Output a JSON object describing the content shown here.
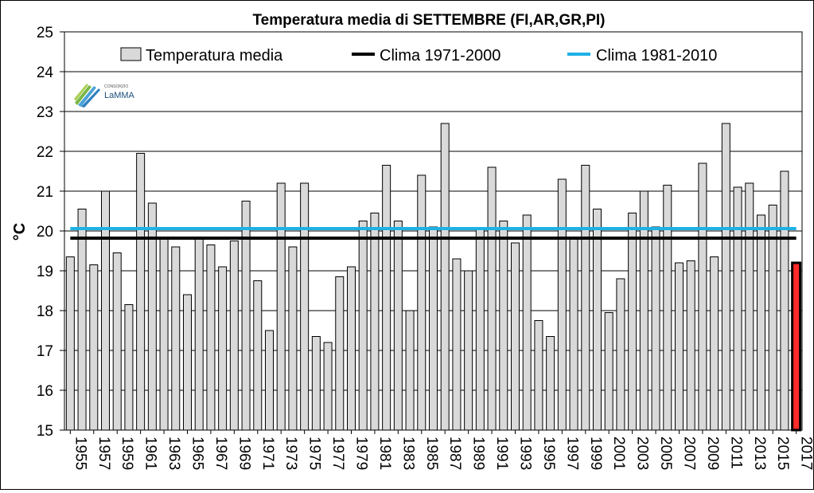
{
  "logo": {
    "top": "CONSORZIO",
    "name": "LaMMA"
  },
  "chart_data": {
    "type": "bar",
    "title": "Temperatura media di SETTEMBRE (FI,AR,GR,PI)",
    "xlabel": "",
    "ylabel": "°C",
    "ylim": [
      15,
      25
    ],
    "yticks": [
      15,
      16,
      17,
      18,
      19,
      20,
      21,
      22,
      23,
      24,
      25
    ],
    "grid": "horizontal",
    "legend_position": "top",
    "categories": [
      "1955",
      "1956",
      "1957",
      "1958",
      "1959",
      "1960",
      "1961",
      "1962",
      "1963",
      "1964",
      "1965",
      "1966",
      "1967",
      "1968",
      "1969",
      "1970",
      "1971",
      "1972",
      "1973",
      "1974",
      "1975",
      "1976",
      "1977",
      "1978",
      "1979",
      "1980",
      "1981",
      "1982",
      "1983",
      "1984",
      "1985",
      "1986",
      "1987",
      "1988",
      "1989",
      "1990",
      "1991",
      "1992",
      "1993",
      "1994",
      "1995",
      "1996",
      "1997",
      "1998",
      "1999",
      "2000",
      "2001",
      "2002",
      "2003",
      "2004",
      "2005",
      "2006",
      "2007",
      "2008",
      "2009",
      "2010",
      "2011",
      "2012",
      "2013",
      "2014",
      "2015",
      "2016",
      "2017"
    ],
    "tick_labels": [
      "1955",
      "1957",
      "1959",
      "1961",
      "1963",
      "1965",
      "1967",
      "1969",
      "1971",
      "1973",
      "1975",
      "1977",
      "1979",
      "1981",
      "1983",
      "1985",
      "1987",
      "1989",
      "1991",
      "1993",
      "1995",
      "1997",
      "1999",
      "2001",
      "2003",
      "2005",
      "2007",
      "2009",
      "2011",
      "2013",
      "2015",
      "2017"
    ],
    "series": [
      {
        "name": "Temperatura media",
        "color": "#d9d9d9",
        "highlight_color": "#ff2a2a",
        "highlight_last": true,
        "values": [
          19.35,
          20.55,
          19.15,
          21.0,
          19.45,
          18.15,
          21.95,
          20.7,
          19.8,
          19.6,
          18.4,
          19.8,
          19.65,
          19.1,
          19.75,
          20.75,
          18.75,
          17.5,
          21.2,
          19.6,
          21.2,
          17.35,
          17.2,
          18.85,
          19.1,
          20.25,
          20.45,
          21.65,
          20.25,
          18.0,
          21.4,
          20.1,
          22.7,
          19.3,
          19.0,
          20.05,
          21.6,
          20.25,
          19.7,
          20.4,
          17.75,
          17.35,
          21.3,
          19.85,
          21.65,
          20.55,
          17.95,
          18.8,
          20.45,
          21.0,
          20.1,
          21.15,
          19.2,
          19.25,
          21.7,
          19.35,
          22.7,
          21.1,
          21.2,
          20.4,
          20.65,
          21.5,
          19.2
        ]
      },
      {
        "name": "Clima 1971-2000",
        "type": "line",
        "color": "#000000",
        "value": 19.82
      },
      {
        "name": "Clima 1981-2010",
        "type": "line",
        "color": "#1fb1e6",
        "value": 20.06
      }
    ]
  }
}
